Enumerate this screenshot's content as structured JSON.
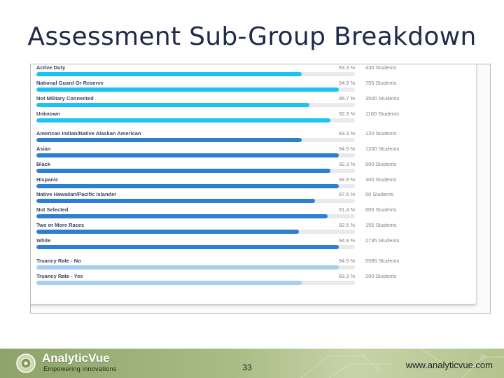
{
  "slide": {
    "title": "Assessment Sub-Group Breakdown",
    "page_number": "33",
    "website": "www.analyticvue.com"
  },
  "logo": {
    "name": "AnalyticVue",
    "tagline": "Empowering innovations"
  },
  "colors": {
    "military_bar": "#19c4f0",
    "ethnicity_bar": "#2d7fd1",
    "truancy_bar": "#a4cff2",
    "track": "#e8eaec"
  },
  "rows": [
    {
      "label": "Active Duty",
      "percent": "83.3 %",
      "students": "430 Students",
      "value": 83.3,
      "group": "military"
    },
    {
      "label": "National Guard Or Reserve",
      "percent": "94.9 %",
      "students": "755 Students",
      "value": 94.9,
      "group": "military"
    },
    {
      "label": "Not Military Connected",
      "percent": "85.7 %",
      "students": "3500 Students",
      "value": 85.7,
      "group": "military"
    },
    {
      "label": "Unknown",
      "percent": "92.3 %",
      "students": "1100 Students",
      "value": 92.3,
      "group": "military"
    },
    {
      "label": "American Indian/Native Alaskan American",
      "percent": "83.3 %",
      "students": "120 Students",
      "value": 83.3,
      "group": "ethnicity"
    },
    {
      "label": "Asian",
      "percent": "94.9 %",
      "students": "1200 Students",
      "value": 94.9,
      "group": "ethnicity"
    },
    {
      "label": "Black",
      "percent": "92.3 %",
      "students": "500 Students",
      "value": 92.3,
      "group": "ethnicity"
    },
    {
      "label": "Hispanic",
      "percent": "94.9 %",
      "students": "300 Students",
      "value": 94.9,
      "group": "ethnicity"
    },
    {
      "label": "Native Hawaiian/Pacific Islander",
      "percent": "87.5 %",
      "students": "50 Students",
      "value": 87.5,
      "group": "ethnicity"
    },
    {
      "label": "Not Selected",
      "percent": "91.4 %",
      "students": "605 Students",
      "value": 91.4,
      "group": "ethnicity"
    },
    {
      "label": "Two or More Races",
      "percent": "82.5 %",
      "students": "155 Students",
      "value": 82.5,
      "group": "ethnicity"
    },
    {
      "label": "White",
      "percent": "94.9 %",
      "students": "2735 Students",
      "value": 94.9,
      "group": "ethnicity"
    },
    {
      "label": "Truancy Rate - No",
      "percent": "94.9 %",
      "students": "5585 Students",
      "value": 94.9,
      "group": "truancy"
    },
    {
      "label": "Truancy Rate - Yes",
      "percent": "83.3 %",
      "students": "200 Students",
      "value": 83.3,
      "group": "truancy"
    }
  ]
}
